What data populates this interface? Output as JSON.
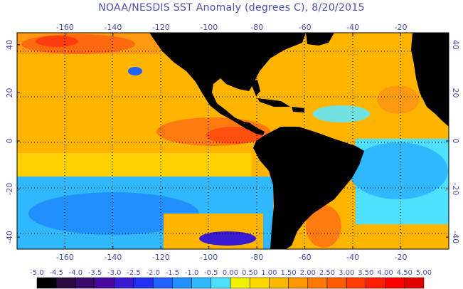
{
  "title": "NOAA/NESDIS SST Anomaly (degrees C), 8/20/2015",
  "map": {
    "lon_range": [
      -180,
      0
    ],
    "lat_range": [
      -45,
      45
    ],
    "lon_ticks": [
      -160,
      -140,
      -120,
      -100,
      -80,
      -60,
      -40,
      -20
    ],
    "lat_ticks": [
      40,
      20,
      0,
      -20,
      -40
    ],
    "grid": "dotted",
    "land_color": "#000000"
  },
  "colorbar": {
    "labels": [
      "-5.0",
      "-4.5",
      "-4.0",
      "-3.5",
      "-3.0",
      "-2.5",
      "-2.0",
      "-1.5",
      "-1.0",
      "-0.5",
      "0.00",
      "0.50",
      "1.00",
      "1.50",
      "2.00",
      "2.50",
      "3.00",
      "3.50",
      "4.00",
      "4.50",
      "5.00"
    ],
    "colors": [
      "#000000",
      "#2a0a40",
      "#3a0a6a",
      "#4a0aa0",
      "#3a1ad0",
      "#2030f0",
      "#2060ff",
      "#2090ff",
      "#30b8ff",
      "#50e0ff",
      "#f0f000",
      "#ffd800",
      "#ffb800",
      "#ff9800",
      "#ff7800",
      "#ff5a00",
      "#ff3c00",
      "#ff1e00",
      "#ff0000",
      "#e00000"
    ]
  }
}
